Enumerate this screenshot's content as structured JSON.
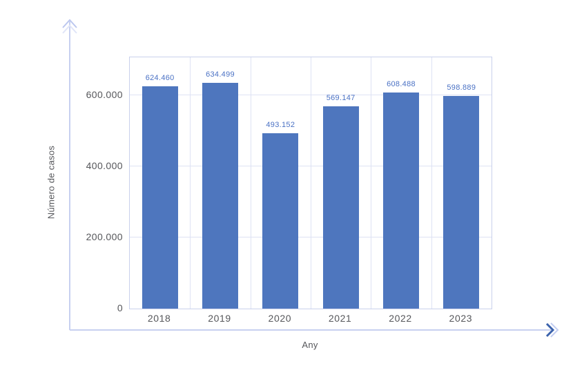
{
  "chart_data": {
    "type": "bar",
    "title": "",
    "xlabel": "Any",
    "ylabel": "Número de casos",
    "categories": [
      "2018",
      "2019",
      "2020",
      "2021",
      "2022",
      "2023"
    ],
    "values": [
      624460,
      634499,
      493152,
      569147,
      608488,
      598889
    ],
    "value_labels": [
      "624.460",
      "634.499",
      "493.152",
      "569.147",
      "608.488",
      "598.889"
    ],
    "yticks": {
      "values": [
        0,
        200000,
        400000,
        600000
      ],
      "labels": [
        "0",
        "200.000",
        "400.000",
        "600.000"
      ]
    },
    "ylim": [
      0,
      707000
    ],
    "grid": true,
    "legend_position": "none",
    "colors": {
      "bar_fill": "#4e76be",
      "value_label": "#4a71c4",
      "tick_text": "#55565a",
      "gridline": "#dee2f4",
      "plot_border": "#c9d0ec",
      "axis_line": "#c7d0f0",
      "axis_arrow_dark": "#3b62ac"
    }
  }
}
